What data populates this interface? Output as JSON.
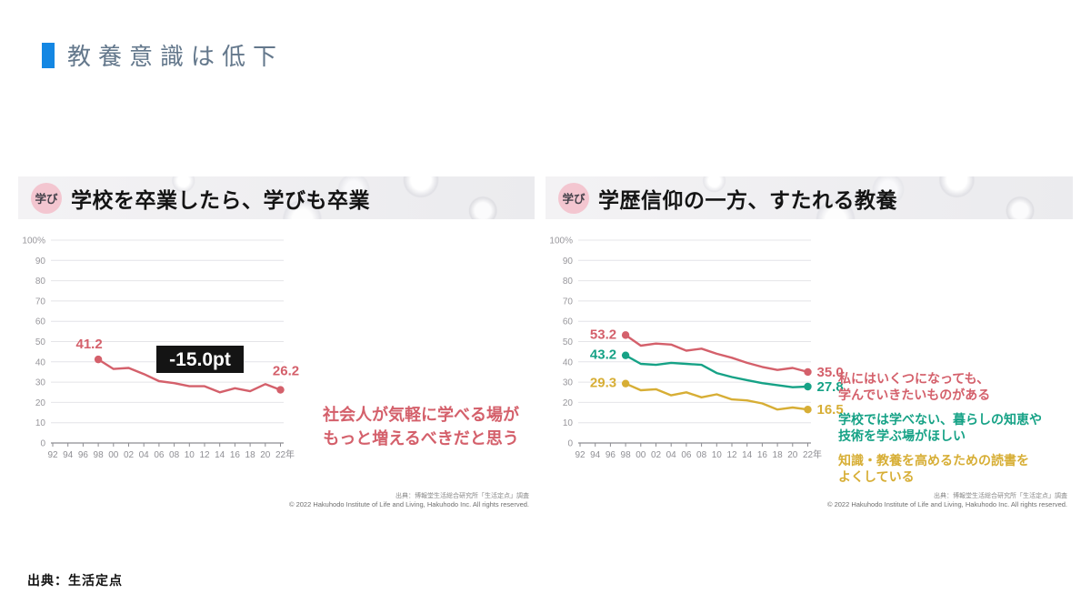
{
  "slide": {
    "title": "教養意識は低下",
    "accent_color": "#1487e3",
    "source": "出典：生活定点"
  },
  "panels": [
    {
      "badge": "学び",
      "heading": "学校を卒業したら、学びも卒業",
      "annotation_lines": [
        "社会人が気軽に学べる場が",
        "もっと増えるべきだと思う"
      ],
      "credit_jp": "出典：博報堂生活総合研究所「生活定点」調査",
      "credit_en": "© 2022 Hakuhodo Institute of Life and Living, Hakuhodo Inc. All rights reserved."
    },
    {
      "badge": "学び",
      "heading": "学歴信仰の一方、すたれる教養",
      "legend": [
        {
          "lines": [
            "私にはいくつになっても、",
            "学んでいきたいものがある"
          ]
        },
        {
          "lines": [
            "学校では学べない、暮らしの知恵や",
            "技術を学ぶ場がほしい"
          ]
        },
        {
          "lines": [
            "知識・教養を高めるための読書を",
            "よくしている"
          ]
        }
      ],
      "credit_jp": "出典：博報堂生活総合研究所「生活定点」調査",
      "credit_en": "© 2022 Hakuhodo Institute of Life and Living, Hakuhodo Inc. All rights reserved."
    }
  ],
  "chart_data": [
    {
      "type": "line",
      "title": "学校を卒業したら、学びも卒業",
      "ylabel": "%",
      "ylim": [
        0,
        100
      ],
      "y_tick_step": 10,
      "y_top_label": "100%",
      "grid": true,
      "x_tick_labels": [
        "92",
        "94",
        "96",
        "98",
        "00",
        "02",
        "04",
        "06",
        "08",
        "10",
        "12",
        "14",
        "16",
        "18",
        "20",
        "22年"
      ],
      "x_start_index": 3,
      "series_x": [
        "98",
        "00",
        "02",
        "04",
        "06",
        "08",
        "10",
        "12",
        "14",
        "16",
        "18",
        "20",
        "22"
      ],
      "series": [
        {
          "name": "社会人が気軽に学べる場がもっと増えるべきだと思う",
          "color": "#d4606b",
          "values": [
            41.2,
            36.5,
            37,
            34,
            30.5,
            29.5,
            28,
            28,
            25,
            27,
            25.5,
            29,
            26.2
          ],
          "first_label": "41.2",
          "last_label": "26.2"
        }
      ],
      "annotation": {
        "text": "-15.0pt",
        "bg": "#141414",
        "fg": "#ffffff"
      }
    },
    {
      "type": "line",
      "title": "学歴信仰の一方、すたれる教養",
      "ylabel": "%",
      "ylim": [
        0,
        100
      ],
      "y_tick_step": 10,
      "y_top_label": "100%",
      "grid": true,
      "x_tick_labels": [
        "92",
        "94",
        "96",
        "98",
        "00",
        "02",
        "04",
        "06",
        "08",
        "10",
        "12",
        "14",
        "16",
        "18",
        "20",
        "22年"
      ],
      "x_start_index": 3,
      "series_x": [
        "98",
        "00",
        "02",
        "04",
        "06",
        "08",
        "10",
        "12",
        "14",
        "16",
        "18",
        "20",
        "22"
      ],
      "series": [
        {
          "name": "私にはいくつになっても、学んでいきたいものがある",
          "color": "#d4606b",
          "values": [
            53.2,
            48,
            49,
            48.5,
            45.5,
            46.5,
            44,
            42,
            39.5,
            37.5,
            36,
            37,
            35.0
          ],
          "first_label": "53.2",
          "last_label": "35.0"
        },
        {
          "name": "学校では学べない、暮らしの知恵や技術を学ぶ場がほしい",
          "color": "#16a286",
          "values": [
            43.2,
            39,
            38.5,
            39.5,
            39,
            38.5,
            34.5,
            32.5,
            31,
            29.5,
            28.5,
            27.5,
            27.8
          ],
          "first_label": "43.2",
          "last_label": "27.8"
        },
        {
          "name": "知識・教養を高めるための読書をよくしている",
          "color": "#d7ae35",
          "values": [
            29.3,
            26,
            26.5,
            23.5,
            25,
            22.5,
            24,
            21.5,
            21,
            19.5,
            16.5,
            17.5,
            16.5
          ],
          "first_label": "29.3",
          "last_label": "16.5"
        }
      ],
      "annotation": null
    }
  ]
}
